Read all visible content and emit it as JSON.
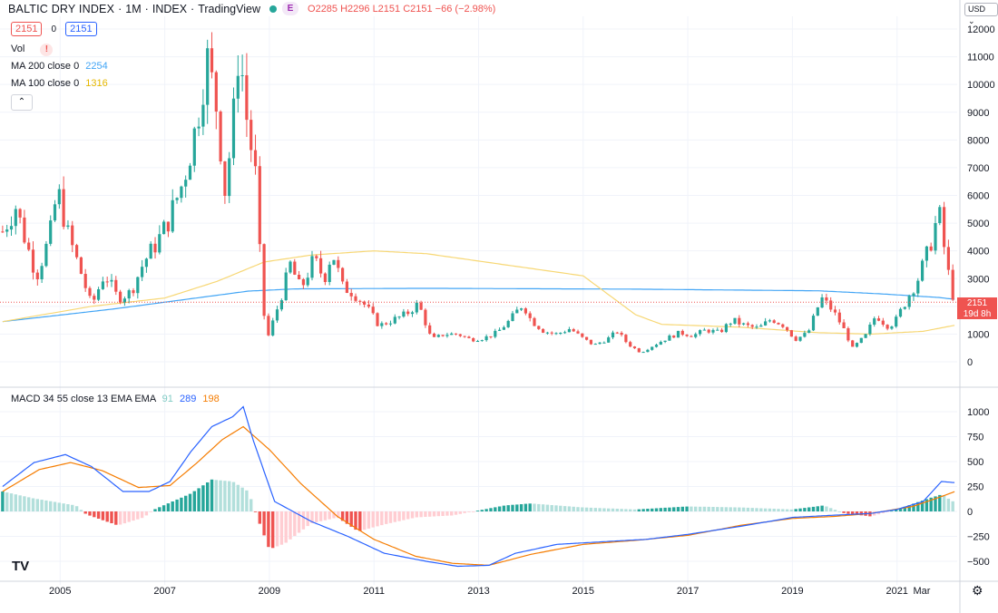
{
  "header": {
    "symbol": "BALTIC DRY INDEX",
    "interval": "1M",
    "exchange": "INDEX",
    "source": "TradingView",
    "badge": "E",
    "ohlc_text": "O2285  H2296  L2151  C2151  −66 (−2.98%)",
    "sep": "·"
  },
  "legend": {
    "price_box": "2151",
    "spread": "0",
    "price_box2": "2151",
    "vol_label": "Vol",
    "vol_warn": "!",
    "ma200_label": "MA 200 close 0",
    "ma200_value": "2254",
    "ma100_label": "MA 100 close 0",
    "ma100_value": "1316",
    "collapse": "⌃",
    "macd_label": "MACD 34 55 close 13 EMA EMA",
    "macd_hist": "91",
    "macd_line": "289",
    "macd_signal": "198"
  },
  "currency": "USD ⌄",
  "last_price_tag": {
    "price": "2151",
    "countdown": "19d 8h"
  },
  "logo": "TV",
  "settings_icon": "gear-icon",
  "colors": {
    "up": "#26a69a",
    "down": "#ef5350",
    "ma200": "#42a5f5",
    "ma100": "#f7d774",
    "macd_line": "#2962ff",
    "signal_line": "#f57c00",
    "hist_up_strong": "#26a69a",
    "hist_up_weak": "#b2dfdb",
    "hist_down_strong": "#ef5350",
    "hist_down_weak": "#ffcdd2"
  },
  "chart_data": [
    {
      "type": "candlestick",
      "title": "BALTIC DRY INDEX · 1M · INDEX",
      "price_axis_ticks": [
        0,
        1000,
        2000,
        3000,
        4000,
        5000,
        6000,
        7000,
        8000,
        9000,
        10000,
        11000,
        12000
      ],
      "price_axis_tick_labels": [
        "0",
        "1000",
        "2000",
        "3000",
        "4000",
        "5000",
        "6000",
        "7000",
        "8000",
        "9000",
        "10000",
        "11000",
        "12000"
      ],
      "time_axis_ticks": [
        2005,
        2007,
        2009,
        2011,
        2013,
        2015,
        2017,
        2019,
        2021
      ],
      "time_axis_tick_labels": [
        "2005",
        "2007",
        "2009",
        "2011",
        "2013",
        "2015",
        "2017",
        "2019",
        "2021"
      ],
      "extra_axis_label": "Mar",
      "x_range": [
        2003.85,
        2022.15
      ],
      "y_range": [
        -1000,
        12600
      ],
      "close_anchors": [
        [
          2003.9,
          4700
        ],
        [
          2004.15,
          5600
        ],
        [
          2004.35,
          4300
        ],
        [
          2004.55,
          3100
        ],
        [
          2004.8,
          4500
        ],
        [
          2004.95,
          6200
        ],
        [
          2005.15,
          4600
        ],
        [
          2005.4,
          3200
        ],
        [
          2005.6,
          2000
        ],
        [
          2005.85,
          3200
        ],
        [
          2006.1,
          2300
        ],
        [
          2006.35,
          2500
        ],
        [
          2006.6,
          3600
        ],
        [
          2006.85,
          4300
        ],
        [
          2007.05,
          5000
        ],
        [
          2007.35,
          6500
        ],
        [
          2007.6,
          8500
        ],
        [
          2007.8,
          11000
        ],
        [
          2008.0,
          9100
        ],
        [
          2008.15,
          6200
        ],
        [
          2008.3,
          8400
        ],
        [
          2008.42,
          11600
        ],
        [
          2008.55,
          9000
        ],
        [
          2008.75,
          6500
        ],
        [
          2008.85,
          2600
        ],
        [
          2008.95,
          750
        ],
        [
          2009.2,
          2200
        ],
        [
          2009.4,
          3500
        ],
        [
          2009.6,
          2600
        ],
        [
          2009.85,
          3700
        ],
        [
          2010.05,
          3000
        ],
        [
          2010.2,
          4000
        ],
        [
          2010.4,
          2700
        ],
        [
          2010.6,
          2500
        ],
        [
          2010.85,
          2000
        ],
        [
          2011.1,
          1300
        ],
        [
          2011.35,
          1500
        ],
        [
          2011.6,
          1700
        ],
        [
          2011.85,
          2100
        ],
        [
          2012.1,
          800
        ],
        [
          2012.35,
          1000
        ],
        [
          2012.6,
          1000
        ],
        [
          2012.85,
          800
        ],
        [
          2013.1,
          850
        ],
        [
          2013.35,
          1050
        ],
        [
          2013.6,
          1500
        ],
        [
          2013.85,
          2100
        ],
        [
          2014.0,
          1500
        ],
        [
          2014.25,
          1100
        ],
        [
          2014.5,
          1000
        ],
        [
          2014.75,
          1200
        ],
        [
          2014.95,
          900
        ],
        [
          2015.2,
          600
        ],
        [
          2015.45,
          800
        ],
        [
          2015.65,
          1100
        ],
        [
          2015.85,
          650
        ],
        [
          2016.1,
          330
        ],
        [
          2016.35,
          600
        ],
        [
          2016.6,
          850
        ],
        [
          2016.85,
          1050
        ],
        [
          2017.1,
          950
        ],
        [
          2017.35,
          1150
        ],
        [
          2017.6,
          1050
        ],
        [
          2017.85,
          1500
        ],
        [
          2018.1,
          1300
        ],
        [
          2018.35,
          1200
        ],
        [
          2018.6,
          1550
        ],
        [
          2018.85,
          1300
        ],
        [
          2019.05,
          800
        ],
        [
          2019.3,
          1050
        ],
        [
          2019.55,
          2300
        ],
        [
          2019.75,
          1900
        ],
        [
          2019.95,
          1300
        ],
        [
          2020.15,
          500
        ],
        [
          2020.4,
          950
        ],
        [
          2020.6,
          1700
        ],
        [
          2020.8,
          1300
        ],
        [
          2020.95,
          1400
        ],
        [
          2021.2,
          2300
        ],
        [
          2021.4,
          3000
        ],
        [
          2021.6,
          4000
        ],
        [
          2021.8,
          5400
        ],
        [
          2021.95,
          3500
        ],
        [
          2022.05,
          2500
        ],
        [
          2022.12,
          2151
        ]
      ],
      "last_close": 2151,
      "ma200_anchors": [
        [
          2003.9,
          1450
        ],
        [
          2006.0,
          1900
        ],
        [
          2008.6,
          2550
        ],
        [
          2009.5,
          2630
        ],
        [
          2012.0,
          2650
        ],
        [
          2016.0,
          2620
        ],
        [
          2019.5,
          2560
        ],
        [
          2020.7,
          2450
        ],
        [
          2021.8,
          2320
        ],
        [
          2022.1,
          2254
        ]
      ],
      "ma100_anchors": [
        [
          2003.9,
          1450
        ],
        [
          2005.6,
          2000
        ],
        [
          2007.0,
          2300
        ],
        [
          2008.0,
          2900
        ],
        [
          2008.9,
          3600
        ],
        [
          2009.8,
          3850
        ],
        [
          2011.0,
          4000
        ],
        [
          2012.0,
          3900
        ],
        [
          2013.5,
          3500
        ],
        [
          2015.0,
          3100
        ],
        [
          2016.0,
          1700
        ],
        [
          2016.5,
          1350
        ],
        [
          2018.0,
          1250
        ],
        [
          2019.5,
          1050
        ],
        [
          2020.5,
          1000
        ],
        [
          2021.5,
          1100
        ],
        [
          2022.1,
          1316
        ]
      ]
    },
    {
      "type": "line",
      "title": "MACD 34 55 close 13 EMA EMA",
      "y_axis_ticks": [
        -500,
        -250,
        0,
        250,
        500,
        750,
        1000
      ],
      "y_axis_tick_labels": [
        "−500",
        "−250",
        "0",
        "250",
        "500",
        "750",
        "1000"
      ],
      "y_range": [
        -680,
        1100
      ],
      "series": [
        {
          "name": "MACD",
          "anchors": [
            [
              2003.9,
              250
            ],
            [
              2004.5,
              490
            ],
            [
              2005.1,
              570
            ],
            [
              2005.6,
              450
            ],
            [
              2006.2,
              200
            ],
            [
              2006.7,
              200
            ],
            [
              2007.1,
              300
            ],
            [
              2007.5,
              600
            ],
            [
              2007.9,
              850
            ],
            [
              2008.3,
              950
            ],
            [
              2008.5,
              1050
            ],
            [
              2008.7,
              700
            ],
            [
              2009.1,
              100
            ],
            [
              2009.8,
              -100
            ],
            [
              2010.5,
              -250
            ],
            [
              2011.2,
              -420
            ],
            [
              2012.0,
              -500
            ],
            [
              2012.6,
              -550
            ],
            [
              2013.2,
              -540
            ],
            [
              2013.7,
              -420
            ],
            [
              2014.5,
              -330
            ],
            [
              2015.5,
              -300
            ],
            [
              2016.2,
              -280
            ],
            [
              2017.0,
              -230
            ],
            [
              2018.0,
              -150
            ],
            [
              2019.0,
              -60
            ],
            [
              2019.7,
              -40
            ],
            [
              2020.5,
              -20
            ],
            [
              2021.0,
              20
            ],
            [
              2021.5,
              100
            ],
            [
              2021.85,
              300
            ],
            [
              2022.1,
              289
            ]
          ]
        },
        {
          "name": "Signal",
          "anchors": [
            [
              2003.9,
              200
            ],
            [
              2004.6,
              420
            ],
            [
              2005.2,
              490
            ],
            [
              2005.8,
              410
            ],
            [
              2006.5,
              240
            ],
            [
              2007.1,
              260
            ],
            [
              2007.6,
              480
            ],
            [
              2008.1,
              720
            ],
            [
              2008.5,
              850
            ],
            [
              2009.0,
              620
            ],
            [
              2009.6,
              280
            ],
            [
              2010.3,
              -50
            ],
            [
              2011.0,
              -280
            ],
            [
              2011.8,
              -450
            ],
            [
              2012.5,
              -520
            ],
            [
              2013.2,
              -540
            ],
            [
              2014.0,
              -430
            ],
            [
              2015.0,
              -330
            ],
            [
              2016.0,
              -290
            ],
            [
              2017.0,
              -240
            ],
            [
              2018.0,
              -140
            ],
            [
              2019.0,
              -70
            ],
            [
              2019.8,
              -50
            ],
            [
              2020.5,
              -20
            ],
            [
              2021.3,
              50
            ],
            [
              2021.8,
              140
            ],
            [
              2022.1,
              198
            ]
          ]
        }
      ],
      "histogram_anchors": [
        [
          2003.9,
          200
        ],
        [
          2004.5,
          130
        ],
        [
          2005.3,
          60
        ],
        [
          2005.5,
          -30
        ],
        [
          2006.1,
          -140
        ],
        [
          2006.6,
          -60
        ],
        [
          2006.8,
          20
        ],
        [
          2007.5,
          180
        ],
        [
          2007.9,
          320
        ],
        [
          2008.3,
          300
        ],
        [
          2008.6,
          200
        ],
        [
          2008.75,
          -30
        ],
        [
          2009.0,
          -380
        ],
        [
          2009.3,
          -320
        ],
        [
          2009.8,
          -120
        ],
        [
          2010.3,
          -60
        ],
        [
          2010.7,
          -200
        ],
        [
          2011.2,
          -130
        ],
        [
          2011.8,
          -60
        ],
        [
          2012.5,
          -40
        ],
        [
          2013.0,
          10
        ],
        [
          2013.5,
          60
        ],
        [
          2014.0,
          80
        ],
        [
          2015.0,
          40
        ],
        [
          2016.0,
          20
        ],
        [
          2017.0,
          50
        ],
        [
          2018.0,
          40
        ],
        [
          2019.0,
          20
        ],
        [
          2019.6,
          60
        ],
        [
          2020.0,
          -20
        ],
        [
          2020.5,
          -50
        ],
        [
          2021.0,
          20
        ],
        [
          2021.6,
          130
        ],
        [
          2021.85,
          170
        ],
        [
          2022.1,
          91
        ]
      ]
    }
  ]
}
